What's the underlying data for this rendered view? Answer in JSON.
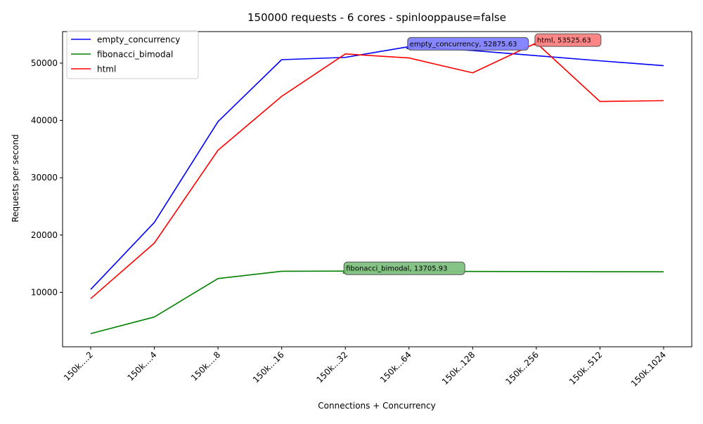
{
  "chart_data": {
    "type": "line",
    "title": "150000 requests - 6 cores - spinlooppause=false",
    "xlabel": "Connections + Concurrency",
    "ylabel": "Requests per second",
    "categories": [
      "150k....2",
      "150k....4",
      "150k....8",
      "150k...16",
      "150k...32",
      "150k...64",
      "150k..128",
      "150k..256",
      "150k..512",
      "150k.1024"
    ],
    "ylim": [
      500,
      55500
    ],
    "yticks": [
      10000,
      20000,
      30000,
      40000,
      50000
    ],
    "grid": false,
    "legend_position": "upper-left",
    "series": [
      {
        "name": "empty_concurrency",
        "color": "#0000ff",
        "values": [
          10500,
          22200,
          39800,
          50600,
          51000,
          52875.63,
          52200,
          51300,
          50400,
          49550
        ]
      },
      {
        "name": "fibonacci_bimodal",
        "color": "#008000",
        "values": [
          2800,
          5700,
          12400,
          13680,
          13705.93,
          13690,
          13650,
          13630,
          13600,
          13590
        ]
      },
      {
        "name": "html",
        "color": "#ff0000",
        "values": [
          8900,
          18600,
          34800,
          44200,
          51600,
          50900,
          48300,
          53525.63,
          43300,
          43450
        ]
      }
    ],
    "annotations": [
      {
        "series": "empty_concurrency",
        "index": 5,
        "text": "empty_concurrency, 52875.63",
        "box_color": "#8080ff"
      },
      {
        "series": "fibonacci_bimodal",
        "index": 4,
        "text": "fibonacci_bimodal, 13705.93",
        "box_color": "#80c080"
      },
      {
        "series": "html",
        "index": 7,
        "text": "html, 53525.63",
        "box_color": "#ff8080"
      }
    ]
  }
}
